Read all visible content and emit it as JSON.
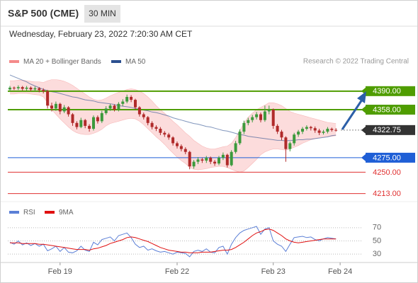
{
  "chart_data": {
    "type": "candlestick",
    "title": "S&P 500 (CME)",
    "interval": "30 MIN",
    "subtitle": "Wednesday, February 23, 2022 7:20:30 AM CET",
    "source": "Research © 2022 Trading Central",
    "categories": [
      null,
      null,
      null,
      null,
      null,
      null,
      null,
      null,
      null,
      null,
      null,
      null,
      "Feb 19",
      null,
      null,
      null,
      null,
      null,
      null,
      null,
      null,
      null,
      null,
      null,
      null,
      null,
      null,
      null,
      null,
      null,
      null,
      null,
      null,
      null,
      null,
      null,
      null,
      null,
      null,
      null,
      "Feb 22",
      null,
      null,
      null,
      null,
      null,
      null,
      null,
      null,
      null,
      null,
      null,
      null,
      null,
      null,
      null,
      null,
      null,
      null,
      null,
      null,
      null,
      null,
      "Feb 23",
      null,
      null,
      null,
      null,
      null,
      null,
      null,
      null,
      null,
      null,
      null,
      null,
      null,
      null,
      null,
      "Feb 24",
      null,
      null,
      null,
      null
    ],
    "open": [
      4393,
      4396,
      4395,
      4397,
      4394,
      4396,
      4393,
      4395,
      4392,
      4390,
      4365,
      4360,
      4368,
      4355,
      4362,
      4350,
      4335,
      4328,
      4340,
      4330,
      4325,
      4345,
      4338,
      4352,
      4360,
      4365,
      4358,
      4368,
      4372,
      4380,
      4375,
      4362,
      4350,
      4345,
      4335,
      4328,
      4325,
      4318,
      4315,
      4310,
      4300,
      4295,
      4290,
      4285,
      4260,
      4268,
      4272,
      4270,
      4275,
      4268,
      4265,
      4275,
      4280,
      4262,
      4285,
      4300,
      4320,
      4335,
      4340,
      4345,
      4350,
      4340,
      4355,
      4358,
      4330,
      4320,
      4310,
      4290,
      4300,
      4315,
      4320,
      4325,
      4328,
      4326,
      4322,
      4318,
      4320,
      4325,
      4323,
      null,
      null,
      null,
      null,
      null
    ],
    "high": [
      4399,
      4398,
      4400,
      4399,
      4399,
      4398,
      4398,
      4397,
      4395,
      4392,
      4370,
      4372,
      4370,
      4366,
      4364,
      4352,
      4338,
      4344,
      4342,
      4333,
      4348,
      4348,
      4356,
      4364,
      4368,
      4367,
      4371,
      4376,
      4384,
      4383,
      4377,
      4364,
      4353,
      4347,
      4338,
      4331,
      4328,
      4321,
      4318,
      4312,
      4303,
      4298,
      4293,
      4287,
      4271,
      4276,
      4275,
      4278,
      4277,
      4271,
      4278,
      4284,
      4282,
      4288,
      4304,
      4324,
      4339,
      4344,
      4349,
      4354,
      4353,
      4365,
      4365,
      4360,
      4333,
      4323,
      4312,
      4303,
      4318,
      4323,
      4328,
      4331,
      4330,
      4329,
      4325,
      4323,
      4328,
      4327,
      4326,
      null,
      null,
      null,
      null,
      null
    ],
    "low": [
      4390,
      4392,
      4392,
      4391,
      4391,
      4390,
      4390,
      4388,
      4386,
      4360,
      4355,
      4356,
      4350,
      4352,
      4346,
      4330,
      4324,
      4326,
      4326,
      4320,
      4322,
      4334,
      4335,
      4349,
      4356,
      4355,
      4355,
      4364,
      4369,
      4371,
      4358,
      4346,
      4341,
      4331,
      4324,
      4321,
      4314,
      4311,
      4306,
      4296,
      4291,
      4286,
      4281,
      4255,
      4256,
      4264,
      4266,
      4266,
      4264,
      4261,
      4262,
      4271,
      4258,
      4260,
      4282,
      4297,
      4316,
      4331,
      4336,
      4341,
      4336,
      4337,
      4350,
      4325,
      4316,
      4305,
      4268,
      4286,
      4296,
      4311,
      4316,
      4322,
      4322,
      4318,
      4314,
      4315,
      4317,
      4320,
      4320,
      null,
      null,
      null,
      null,
      null
    ],
    "close": [
      4396,
      4395,
      4397,
      4394,
      4396,
      4393,
      4395,
      4392,
      4390,
      4365,
      4360,
      4368,
      4355,
      4362,
      4350,
      4335,
      4328,
      4340,
      4330,
      4325,
      4345,
      4338,
      4352,
      4360,
      4365,
      4358,
      4368,
      4372,
      4380,
      4375,
      4362,
      4350,
      4345,
      4335,
      4328,
      4325,
      4318,
      4315,
      4310,
      4300,
      4295,
      4290,
      4285,
      4260,
      4268,
      4272,
      4270,
      4275,
      4268,
      4265,
      4275,
      4280,
      4262,
      4285,
      4300,
      4320,
      4335,
      4340,
      4345,
      4350,
      4340,
      4355,
      4358,
      4330,
      4320,
      4310,
      4290,
      4300,
      4315,
      4320,
      4325,
      4328,
      4326,
      4322,
      4318,
      4320,
      4325,
      4323,
      4322.75,
      null,
      null,
      null,
      null,
      null
    ],
    "up_color": "#3c9a3c",
    "down_color": "#b02a2a",
    "series": [
      {
        "name": "MA 20 + Bollinger Bands",
        "color": "#f48a8a",
        "upper": [
          4408,
          4408,
          4409,
          4409,
          4408,
          4407,
          4406,
          4406,
          4405,
          4408,
          4410,
          4410,
          4409,
          4407,
          4404,
          4400,
          4395,
          4390,
          4385,
          4380,
          4376,
          4374,
          4375,
          4378,
          4382,
          4385,
          4388,
          4390,
          4393,
          4394,
          4393,
          4390,
          4386,
          4380,
          4373,
          4365,
          4358,
          4352,
          4345,
          4338,
          4332,
          4325,
          4318,
          4312,
          4305,
          4300,
          4295,
          4292,
          4290,
          4290,
          4292,
          4294,
          4295,
          4300,
          4310,
          4322,
          4335,
          4345,
          4352,
          4358,
          4362,
          4366,
          4370,
          4370,
          4368,
          4365,
          4360,
          4355,
          4352,
          4350,
          4348,
          4346,
          4344,
          4342,
          4340,
          4338,
          4336,
          4335,
          4334,
          null,
          null,
          null,
          null,
          null
        ],
        "lower": [
          4385,
          4385,
          4386,
          4386,
          4386,
          4385,
          4384,
          4383,
          4380,
          4370,
          4358,
          4350,
          4342,
          4335,
          4328,
          4322,
          4318,
          4316,
          4315,
          4315,
          4317,
          4320,
          4324,
          4330,
          4334,
          4336,
          4338,
          4340,
          4342,
          4343,
          4342,
          4338,
          4332,
          4325,
          4318,
          4311,
          4305,
          4298,
          4290,
          4283,
          4276,
          4270,
          4265,
          4258,
          4255,
          4254,
          4255,
          4256,
          4258,
          4259,
          4260,
          4260,
          4258,
          4255,
          4252,
          4250,
          4252,
          4258,
          4265,
          4272,
          4280,
          4285,
          4288,
          4290,
          4290,
          4289,
          4288,
          4290,
          4293,
          4296,
          4300,
          4303,
          4306,
          4308,
          4310,
          4311,
          4312,
          4312,
          4313,
          null,
          null,
          null,
          null,
          null
        ]
      },
      {
        "name": "MA 50",
        "color": "#2b4f8f",
        "values": [
          4418,
          4415,
          4412,
          4409,
          4406,
          4402,
          4399,
          4396,
          4393,
          4391,
          4389,
          4388,
          4386,
          4384,
          4382,
          4380,
          4379,
          4377,
          4375,
          4374,
          4373,
          4371,
          4370,
          4369,
          4368,
          4367,
          4365,
          4364,
          4363,
          4362,
          4360,
          4359,
          4357,
          4356,
          4354,
          4353,
          4351,
          4349,
          4347,
          4344,
          4342,
          4340,
          4338,
          4336,
          4334,
          4333,
          4331,
          4329,
          4328,
          4326,
          4324,
          4322,
          4321,
          4319,
          4317,
          4315,
          4314,
          4312,
          4311,
          4310,
          4309,
          4308,
          4307,
          4306,
          4305,
          4305,
          4304,
          4305,
          4305,
          4306,
          4306,
          4307,
          4307,
          4308,
          4309,
          4310,
          4311,
          4313,
          4314,
          null,
          null,
          null,
          null,
          null
        ]
      }
    ],
    "ylim": [
      4204,
      4424
    ],
    "levels": [
      {
        "value": 4390,
        "label": "4390.00",
        "color": "#4f9d00",
        "style": "box"
      },
      {
        "value": 4358,
        "label": "4358.00",
        "color": "#4f9d00",
        "style": "box"
      },
      {
        "value": 4322.75,
        "label": "4322.75",
        "color": "#333333",
        "style": "box"
      },
      {
        "value": 4275,
        "label": "4275.00",
        "color": "#1f5fd6",
        "style": "box"
      },
      {
        "value": 4250,
        "label": "4250.00",
        "color": "#e03030",
        "style": "text"
      },
      {
        "value": 4213,
        "label": "4213.00",
        "color": "#e03030",
        "style": "text"
      }
    ],
    "rsi_panel": {
      "ylim": [
        20,
        80
      ],
      "yticks": [
        70,
        50,
        30
      ],
      "series": [
        {
          "name": "RSI",
          "color": "#5b7fd6",
          "values": [
            48,
            45,
            50,
            44,
            47,
            43,
            46,
            42,
            45,
            35,
            38,
            42,
            34,
            40,
            33,
            32,
            35,
            42,
            36,
            34,
            48,
            44,
            52,
            54,
            56,
            50,
            58,
            60,
            62,
            55,
            45,
            40,
            42,
            36,
            38,
            35,
            33,
            34,
            32,
            30,
            33,
            32,
            31,
            26,
            34,
            36,
            34,
            38,
            33,
            32,
            40,
            42,
            30,
            45,
            55,
            62,
            66,
            68,
            70,
            72,
            60,
            68,
            70,
            50,
            45,
            42,
            34,
            45,
            55,
            56,
            57,
            55,
            56,
            52,
            50,
            53,
            55,
            54,
            53,
            null,
            null,
            null,
            null,
            null
          ]
        },
        {
          "name": "9MA",
          "color": "#e01010",
          "values": [
            47,
            47,
            47,
            46,
            46,
            46,
            46,
            45,
            45,
            44,
            43,
            42,
            41,
            40,
            39,
            38,
            37,
            37,
            37,
            36,
            38,
            39,
            41,
            43,
            46,
            48,
            50,
            52,
            55,
            56,
            55,
            53,
            51,
            49,
            46,
            43,
            40,
            38,
            36,
            35,
            34,
            33,
            33,
            32,
            32,
            32,
            33,
            33,
            33,
            34,
            35,
            36,
            36,
            37,
            40,
            44,
            48,
            53,
            58,
            62,
            64,
            67,
            68,
            66,
            62,
            58,
            53,
            50,
            48,
            47,
            48,
            49,
            50,
            51,
            52,
            53,
            53,
            53,
            53,
            null,
            null,
            null,
            null,
            null
          ]
        }
      ]
    }
  }
}
